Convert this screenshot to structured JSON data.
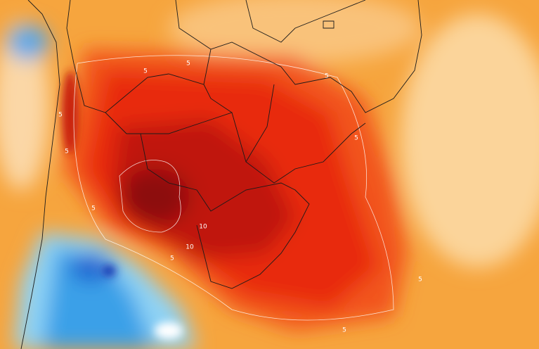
{
  "contour_labels": [
    "5",
    "5",
    "5",
    "5",
    "5",
    "5",
    "5",
    "5",
    "5",
    "5",
    "10",
    "10"
  ]
}
